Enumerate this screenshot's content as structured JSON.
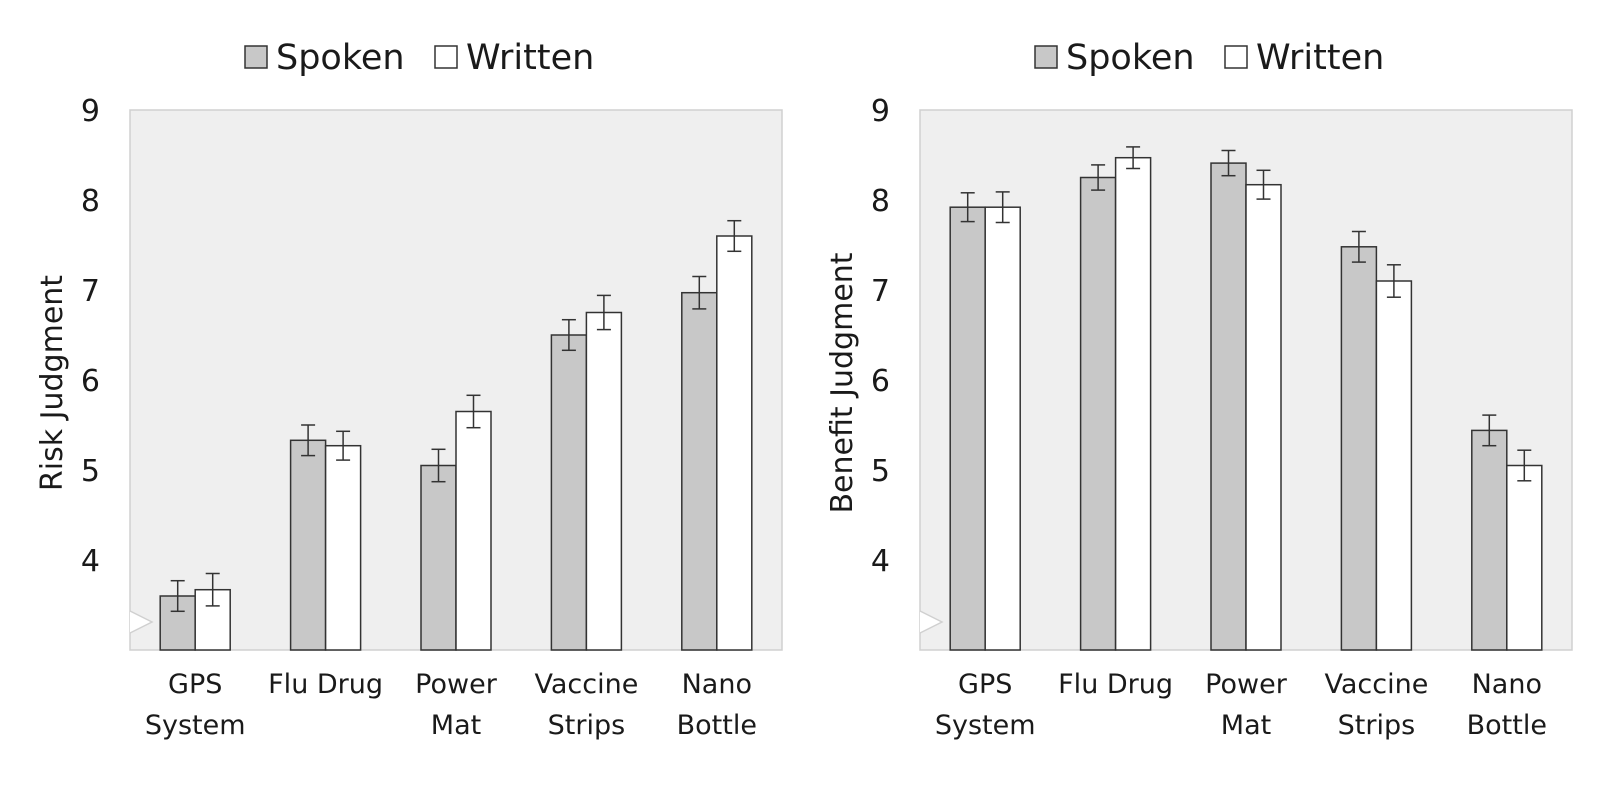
{
  "chart_data": [
    {
      "type": "bar",
      "title": "",
      "xlabel": "",
      "ylabel": "Risk Judgment",
      "ylim": [
        3,
        9
      ],
      "yticks": [
        4,
        5,
        6,
        7,
        8,
        9
      ],
      "axis_break": true,
      "grid": false,
      "legend": "top-center",
      "categories": [
        [
          "GPS",
          "System"
        ],
        [
          "Flu Drug"
        ],
        [
          "Power",
          "Mat"
        ],
        [
          "Vaccine",
          "Strips"
        ],
        [
          "Nano",
          "Bottle"
        ]
      ],
      "series": [
        {
          "name": "Spoken",
          "color": "#c8c8c8",
          "values": [
            3.6,
            5.33,
            5.05,
            6.5,
            6.97
          ],
          "errors": [
            0.17,
            0.17,
            0.18,
            0.17,
            0.18
          ]
        },
        {
          "name": "Written",
          "color": "#ffffff",
          "values": [
            3.67,
            5.27,
            5.65,
            6.75,
            7.6
          ],
          "errors": [
            0.18,
            0.16,
            0.18,
            0.19,
            0.17
          ]
        }
      ]
    },
    {
      "type": "bar",
      "title": "",
      "xlabel": "",
      "ylabel": "Benefit Judgment",
      "ylim": [
        3,
        9
      ],
      "yticks": [
        4,
        5,
        6,
        7,
        8,
        9
      ],
      "axis_break": true,
      "grid": false,
      "legend": "top-center",
      "categories": [
        [
          "GPS",
          "System"
        ],
        [
          "Flu Drug"
        ],
        [
          "Power",
          "Mat"
        ],
        [
          "Vaccine",
          "Strips"
        ],
        [
          "Nano",
          "Bottle"
        ]
      ],
      "series": [
        {
          "name": "Spoken",
          "color": "#c8c8c8",
          "values": [
            7.92,
            8.25,
            8.41,
            7.48,
            5.44
          ],
          "errors": [
            0.16,
            0.14,
            0.14,
            0.17,
            0.17
          ]
        },
        {
          "name": "Written",
          "color": "#ffffff",
          "values": [
            7.92,
            8.47,
            8.17,
            7.1,
            5.05
          ],
          "errors": [
            0.17,
            0.12,
            0.16,
            0.18,
            0.17
          ]
        }
      ]
    }
  ],
  "colors": {
    "plot_background": "#efefef",
    "axis": "#d0d0d0",
    "bar_stroke": "#333333",
    "text": "#1a1a1a"
  }
}
